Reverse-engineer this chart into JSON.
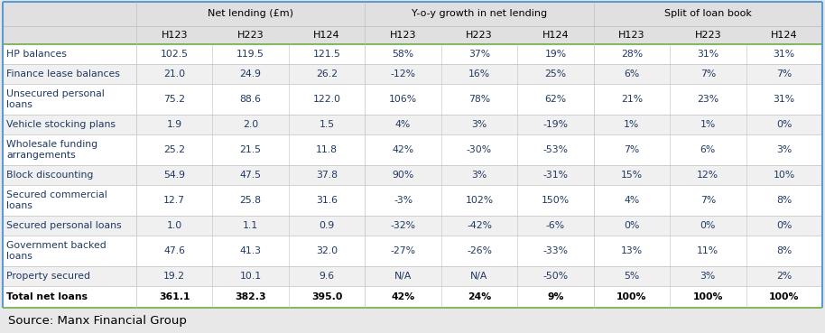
{
  "source": "Source: Manx Financial Group",
  "col_groups": [
    {
      "label": "Net lending (£m)"
    },
    {
      "label": "Y-o-y growth in net lending"
    },
    {
      "label": "Split of loan book"
    }
  ],
  "sub_headers": [
    "",
    "H123",
    "H223",
    "H124",
    "H123",
    "H223",
    "H124",
    "H123",
    "H223",
    "H124"
  ],
  "rows": [
    [
      "HP balances",
      "102.5",
      "119.5",
      "121.5",
      "58%",
      "37%",
      "19%",
      "28%",
      "31%",
      "31%"
    ],
    [
      "Finance lease balances",
      "21.0",
      "24.9",
      "26.2",
      "-12%",
      "16%",
      "25%",
      "6%",
      "7%",
      "7%"
    ],
    [
      "Unsecured personal\nloans",
      "75.2",
      "88.6",
      "122.0",
      "106%",
      "78%",
      "62%",
      "21%",
      "23%",
      "31%"
    ],
    [
      "Vehicle stocking plans",
      "1.9",
      "2.0",
      "1.5",
      "4%",
      "3%",
      "-19%",
      "1%",
      "1%",
      "0%"
    ],
    [
      "Wholesale funding\narrangements",
      "25.2",
      "21.5",
      "11.8",
      "42%",
      "-30%",
      "-53%",
      "7%",
      "6%",
      "3%"
    ],
    [
      "Block discounting",
      "54.9",
      "47.5",
      "37.8",
      "90%",
      "3%",
      "-31%",
      "15%",
      "12%",
      "10%"
    ],
    [
      "Secured commercial\nloans",
      "12.7",
      "25.8",
      "31.6",
      "-3%",
      "102%",
      "150%",
      "4%",
      "7%",
      "8%"
    ],
    [
      "Secured personal loans",
      "1.0",
      "1.1",
      "0.9",
      "-32%",
      "-42%",
      "-6%",
      "0%",
      "0%",
      "0%"
    ],
    [
      "Government backed\nloans",
      "47.6",
      "41.3",
      "32.0",
      "-27%",
      "-26%",
      "-33%",
      "13%",
      "11%",
      "8%"
    ],
    [
      "Property secured",
      "19.2",
      "10.1",
      "9.6",
      "N/A",
      "N/A",
      "-50%",
      "5%",
      "3%",
      "2%"
    ],
    [
      "Total net loans",
      "361.1",
      "382.3",
      "395.0",
      "42%",
      "24%",
      "9%",
      "100%",
      "100%",
      "100%"
    ]
  ],
  "header_bg": "#e0e0e0",
  "subheader_bg": "#e0e0e0",
  "row_bg_white": "#ffffff",
  "row_bg_gray": "#f0f0f0",
  "source_bg": "#e8e8e8",
  "border_outer": "#5b9bd5",
  "border_inner": "#c0c0c0",
  "border_green": "#70ad47",
  "text_dark": "#1f3864",
  "text_black": "#000000",
  "font_size_group": 8.0,
  "font_size_sub": 8.0,
  "font_size_data": 7.8,
  "font_size_source": 9.5
}
